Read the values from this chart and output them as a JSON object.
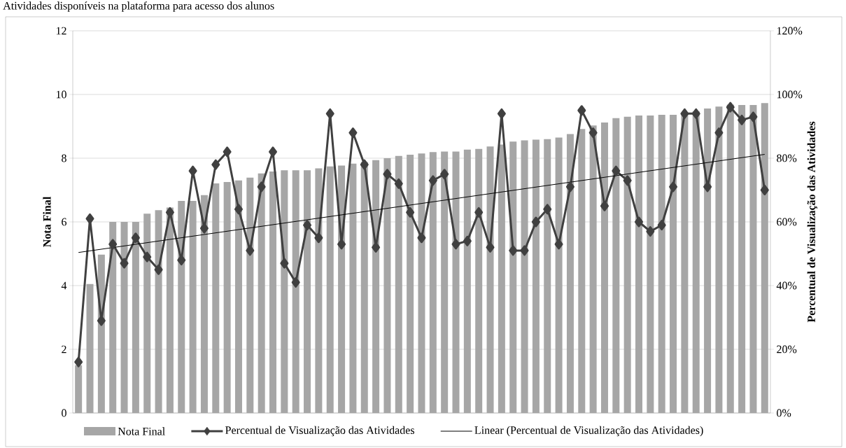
{
  "chart_data": {
    "type": "bar",
    "title": "Atividades disponíveis na plataforma para acesso dos alunos",
    "ylabel": "Nota Final",
    "y2label": "Percentual de Visualização das Atividades",
    "categories": [
      null,
      null,
      null,
      null,
      null,
      null,
      null,
      null,
      null,
      null,
      null,
      null,
      null,
      null,
      null,
      null,
      null,
      null,
      null,
      null,
      null,
      null,
      null,
      null,
      null,
      null,
      null,
      null,
      null,
      null,
      null,
      null,
      null,
      null,
      null,
      null,
      null,
      null,
      null,
      null,
      null,
      null,
      null,
      null,
      null,
      null,
      null,
      null,
      null,
      null,
      null,
      null,
      null,
      null,
      null,
      null,
      null,
      null,
      null,
      null,
      null
    ],
    "series": [
      {
        "name": "Nota Final",
        "color": "#a6a6a6",
        "values": [
          1.5,
          4.05,
          4.97,
          6.0,
          6.0,
          6.0,
          6.26,
          6.37,
          6.45,
          6.66,
          6.66,
          6.84,
          7.21,
          7.25,
          7.3,
          7.39,
          7.52,
          7.58,
          7.62,
          7.62,
          7.62,
          7.68,
          7.74,
          7.77,
          7.83,
          7.88,
          7.94,
          8.0,
          8.07,
          8.11,
          8.15,
          8.19,
          8.21,
          8.21,
          8.27,
          8.29,
          8.37,
          8.43,
          8.52,
          8.56,
          8.58,
          8.6,
          8.65,
          8.76,
          8.92,
          9.03,
          9.12,
          9.26,
          9.3,
          9.34,
          9.34,
          9.36,
          9.36,
          9.43,
          9.47,
          9.56,
          9.62,
          9.68,
          9.67,
          9.67,
          9.73
        ]
      },
      {
        "name": "Percentual de Visualização das Atividades",
        "type": "line",
        "axis": "y2",
        "color": "#404040",
        "marker": "diamond",
        "values": [
          16,
          61,
          29,
          53,
          47,
          55,
          49,
          45,
          63,
          48,
          76,
          58,
          78,
          82,
          64,
          51,
          71,
          82,
          47,
          41,
          59,
          55,
          94,
          53,
          88,
          78,
          52,
          75,
          72,
          63,
          55,
          73,
          75,
          53,
          54,
          63,
          52,
          94,
          51,
          51,
          60,
          64,
          53,
          71,
          95,
          88,
          65,
          76,
          73,
          60,
          57,
          59,
          71,
          94,
          94,
          71,
          88,
          96,
          92,
          93,
          70
        ]
      },
      {
        "name": "Linear (Percentual de Visualização das Atividades)",
        "type": "line",
        "axis": "y2",
        "color": "#000000",
        "marker": "none",
        "values": [
          50.4,
          null,
          null,
          null,
          null,
          null,
          null,
          null,
          null,
          null,
          null,
          null,
          null,
          null,
          null,
          null,
          null,
          null,
          null,
          null,
          null,
          null,
          null,
          null,
          null,
          null,
          null,
          null,
          null,
          null,
          null,
          null,
          null,
          null,
          null,
          null,
          null,
          null,
          null,
          null,
          null,
          null,
          null,
          null,
          null,
          null,
          null,
          null,
          null,
          null,
          null,
          null,
          null,
          null,
          null,
          null,
          null,
          null,
          null,
          null,
          81.2
        ]
      }
    ],
    "ylim": [
      0,
      12
    ],
    "yticks": [
      0,
      2,
      4,
      6,
      8,
      10,
      12
    ],
    "y2lim": [
      0,
      120
    ],
    "y2ticks": [
      {
        "value": 0,
        "label": "0%"
      },
      {
        "value": 20,
        "label": "20%"
      },
      {
        "value": 40,
        "label": "40%"
      },
      {
        "value": 60,
        "label": "60%"
      },
      {
        "value": 80,
        "label": "80%"
      },
      {
        "value": 100,
        "label": "100%"
      },
      {
        "value": 120,
        "label": "120%"
      }
    ],
    "grid": "y",
    "legend": "bottom"
  }
}
